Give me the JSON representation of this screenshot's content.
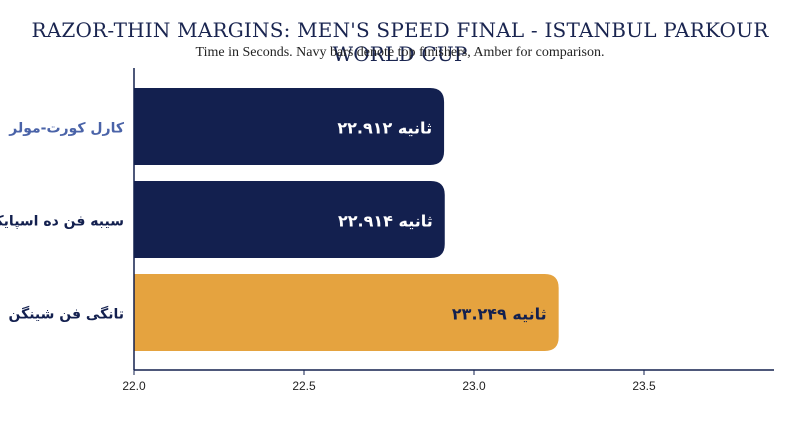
{
  "chart_data": {
    "type": "bar",
    "orientation": "horizontal",
    "title": "RAZOR-THIN MARGINS: MEN'S SPEED FINAL - ISTANBUL PARKOUR WORLD CUP",
    "subtitle": "Time in Seconds. Navy bars denote top finishers, Amber for comparison.",
    "categories": [
      "کارل کورت-مولر",
      "سیبه فن ده اسپایکر",
      "تانگی فن شینگن"
    ],
    "values": [
      22.912,
      22.914,
      23.249
    ],
    "value_labels": [
      "۲۲.۹۱۲ ثانیه",
      "۲۲.۹۱۴ ثانیه",
      "۲۳.۲۴۹ ثانیه"
    ],
    "bar_colors": [
      "#13204f",
      "#13204f",
      "#e5a33f"
    ],
    "label_colors": [
      "#ffffff",
      "#ffffff",
      "#13204f"
    ],
    "category_label_colors": [
      "#4a63a8",
      "#13204f",
      "#13204f"
    ],
    "xlim": [
      22.0,
      23.9
    ],
    "xticks": [
      "22.0",
      "22.5",
      "23.0",
      "23.5"
    ],
    "xtick_values": [
      22.0,
      22.5,
      23.0,
      23.5
    ],
    "grid": false,
    "legend": "none"
  }
}
